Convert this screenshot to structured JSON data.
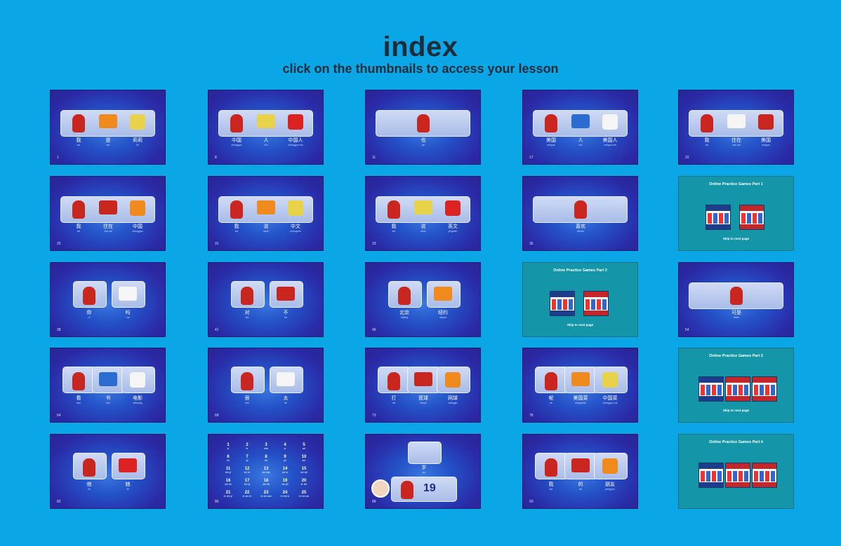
{
  "header": {
    "title": "index",
    "subtitle": "click on the thumbnails to access your lesson"
  },
  "colors": {
    "background": "#0aa6e6",
    "thumb_blue": "#2a2aa6",
    "thumb_teal": "#1596a8",
    "title": "#1d2c3a"
  },
  "thumbnails": [
    {
      "num": "1",
      "kind": "blue",
      "words": [
        {
          "zh": "我",
          "py": "wǒ"
        },
        {
          "zh": "是",
          "py": "shì"
        },
        {
          "zh": "莉莉",
          "py": "lìli"
        }
      ]
    },
    {
      "num": "8",
      "kind": "blue",
      "words": [
        {
          "zh": "中国",
          "py": "zhōngguó"
        },
        {
          "zh": "人",
          "py": "rén"
        },
        {
          "zh": "中国人",
          "py": "zhōngguó rén"
        }
      ]
    },
    {
      "num": "11",
      "kind": "blue",
      "words": [
        {
          "zh": "也",
          "py": "yě"
        }
      ]
    },
    {
      "num": "17",
      "kind": "blue",
      "words": [
        {
          "zh": "美国",
          "py": "měiguó"
        },
        {
          "zh": "人",
          "py": "rén"
        },
        {
          "zh": "美国人",
          "py": "měiguó rén"
        }
      ]
    },
    {
      "num": "22",
      "kind": "blue",
      "words": [
        {
          "zh": "我",
          "py": "wǒ"
        },
        {
          "zh": "住在",
          "py": "zhù zài"
        },
        {
          "zh": "美国",
          "py": "měiguó"
        }
      ]
    },
    {
      "num": "25",
      "kind": "blue",
      "words": [
        {
          "zh": "我",
          "py": "wǒ"
        },
        {
          "zh": "住在",
          "py": "zhù zài"
        },
        {
          "zh": "中国",
          "py": "zhōngguó"
        }
      ]
    },
    {
      "num": "31",
      "kind": "blue",
      "words": [
        {
          "zh": "我",
          "py": "wǒ"
        },
        {
          "zh": "说",
          "py": "shuō"
        },
        {
          "zh": "中文",
          "py": "zhōngwén"
        }
      ]
    },
    {
      "num": "33",
      "kind": "blue",
      "words": [
        {
          "zh": "我",
          "py": "wǒ"
        },
        {
          "zh": "说",
          "py": "shuō"
        },
        {
          "zh": "英文",
          "py": "yīngwén"
        }
      ]
    },
    {
      "num": "35",
      "kind": "blue",
      "words": [
        {
          "zh": "喜欢",
          "py": "xǐhuān"
        }
      ]
    },
    {
      "num": "",
      "kind": "teal",
      "title": "Online Practice Games Part 1",
      "skip": "Skip to next page"
    },
    {
      "num": "38",
      "kind": "blue",
      "words": [
        {
          "zh": "你",
          "py": "nǐ"
        },
        {
          "zh": "吗",
          "py": "ma"
        }
      ]
    },
    {
      "num": "41",
      "kind": "blue",
      "words": [
        {
          "zh": "对",
          "py": "duì"
        },
        {
          "zh": "不",
          "py": "bù"
        }
      ]
    },
    {
      "num": "46",
      "kind": "blue",
      "words": [
        {
          "zh": "北京",
          "py": "běijīng"
        },
        {
          "zh": "纽约",
          "py": "niǔyuē"
        }
      ]
    },
    {
      "num": "",
      "kind": "teal",
      "title": "Online Practice Games Part 2",
      "skip": "Skip to next page"
    },
    {
      "num": "54",
      "kind": "blue",
      "words": [
        {
          "zh": "可是",
          "py": "kěshì"
        }
      ]
    },
    {
      "num": "64",
      "kind": "blue",
      "words": [
        {
          "zh": "看",
          "py": "kàn"
        },
        {
          "zh": "书",
          "py": "shū"
        },
        {
          "zh": "电影",
          "py": "diànyǐng"
        }
      ]
    },
    {
      "num": "68",
      "kind": "blue",
      "words": [
        {
          "zh": "很",
          "py": "hěn"
        },
        {
          "zh": "太",
          "py": "tài"
        }
      ]
    },
    {
      "num": "73",
      "kind": "blue",
      "words": [
        {
          "zh": "打",
          "py": "dǎ"
        },
        {
          "zh": "篮球",
          "py": "lánqiú"
        },
        {
          "zh": "网球",
          "py": "wǎngqiú"
        }
      ]
    },
    {
      "num": "78",
      "kind": "blue",
      "words": [
        {
          "zh": "呢",
          "py": "ne"
        },
        {
          "zh": "美国菜",
          "py": "měiguócài"
        },
        {
          "zh": "中国菜",
          "py": "zhōngguó cài"
        }
      ]
    },
    {
      "num": "",
      "kind": "teal",
      "title": "Online Practice Games Part 3",
      "skip": "Skip to next page"
    },
    {
      "num": "82",
      "kind": "blue",
      "words": [
        {
          "zh": "他",
          "py": "tā"
        },
        {
          "zh": "她",
          "py": "tā"
        }
      ]
    },
    {
      "num": "86",
      "kind": "numbers",
      "cells": [
        {
          "n": "1",
          "p": "yī"
        },
        {
          "n": "2",
          "p": "èr"
        },
        {
          "n": "3",
          "p": "sān"
        },
        {
          "n": "4",
          "p": "sì"
        },
        {
          "n": "5",
          "p": "wǔ"
        },
        {
          "n": "6",
          "p": "liù"
        },
        {
          "n": "7",
          "p": "qī"
        },
        {
          "n": "8",
          "p": "bā"
        },
        {
          "n": "9",
          "p": "jiǔ"
        },
        {
          "n": "10",
          "p": "shí"
        },
        {
          "n": "11",
          "p": "shí yī"
        },
        {
          "n": "12",
          "p": "shí èr"
        },
        {
          "n": "13",
          "p": "shí sān"
        },
        {
          "n": "14",
          "p": "shí sì"
        },
        {
          "n": "15",
          "p": "shí wǔ"
        },
        {
          "n": "16",
          "p": "shí liù"
        },
        {
          "n": "17",
          "p": "shí qī"
        },
        {
          "n": "18",
          "p": "shí bā"
        },
        {
          "n": "19",
          "p": "shí jiǔ"
        },
        {
          "n": "20",
          "p": "èr shí"
        },
        {
          "n": "21",
          "p": "èr shí yī"
        },
        {
          "n": "22",
          "p": "èr shí èr"
        },
        {
          "n": "23",
          "p": "èr shí sān"
        },
        {
          "n": "24",
          "p": "èr shí sì"
        },
        {
          "n": "25",
          "p": "èr shí wǔ"
        }
      ]
    },
    {
      "num": "88",
      "kind": "age",
      "words": [
        {
          "zh": "岁",
          "py": "suì"
        }
      ],
      "age": "19"
    },
    {
      "num": "93",
      "kind": "blue",
      "words": [
        {
          "zh": "我",
          "py": "wǒ"
        },
        {
          "zh": "的",
          "py": "de"
        },
        {
          "zh": "朋友",
          "py": "péngyou"
        }
      ]
    },
    {
      "num": "",
      "kind": "teal",
      "title": "Online Practice Games Part 4",
      "skip": ""
    }
  ]
}
